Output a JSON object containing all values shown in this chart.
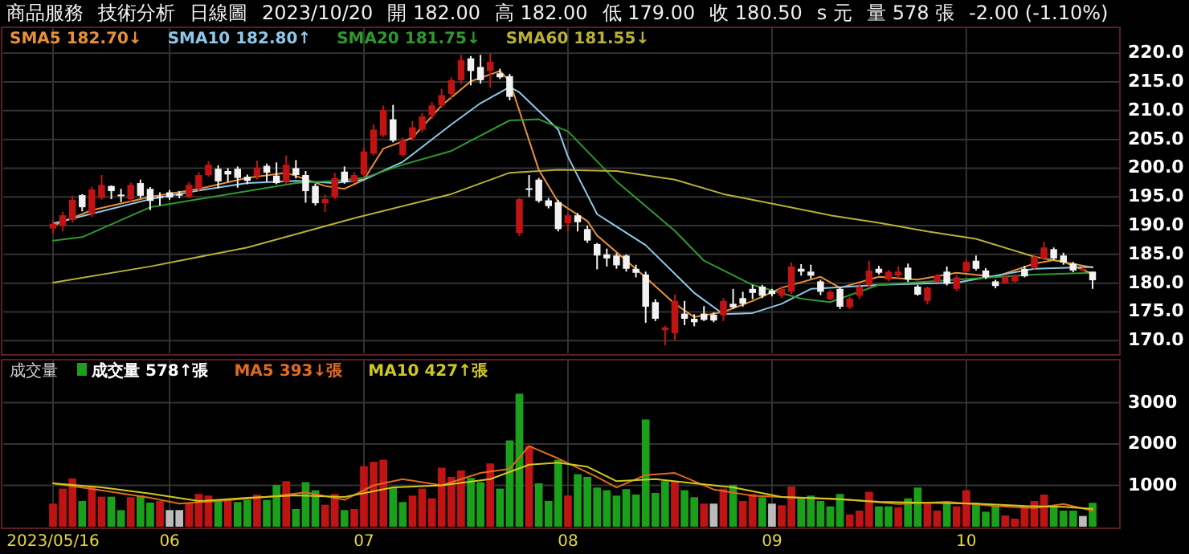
{
  "chart_data": [
    {
      "type": "candlestick",
      "annotations": [
        "商品服務",
        "技術分析",
        "日線圖",
        "2023/10/20",
        "開 182.00",
        "高 182.00",
        "低 179.00",
        "收 180.50",
        "s 元",
        "量 578 張",
        "-2.00 (-1.10%)"
      ],
      "categories": [
        "2023/05/16",
        null,
        null,
        null,
        null,
        null,
        null,
        null,
        null,
        null,
        null,
        null,
        "06",
        null,
        null,
        null,
        null,
        null,
        null,
        null,
        null,
        null,
        null,
        null,
        null,
        null,
        null,
        null,
        null,
        null,
        null,
        null,
        "07",
        null,
        null,
        null,
        null,
        null,
        null,
        null,
        null,
        null,
        null,
        null,
        null,
        null,
        null,
        null,
        null,
        null,
        null,
        null,
        null,
        "08",
        null,
        null,
        null,
        null,
        null,
        null,
        null,
        null,
        null,
        null,
        null,
        null,
        null,
        null,
        null,
        null,
        null,
        null,
        null,
        null,
        "09",
        null,
        null,
        null,
        null,
        null,
        null,
        null,
        null,
        null,
        null,
        null,
        null,
        null,
        null,
        null,
        null,
        null,
        null,
        null,
        "10",
        null,
        null,
        null,
        null,
        null,
        null,
        null,
        null,
        null,
        null,
        null,
        null,
        null
      ],
      "ohlc": [
        [
          189.5,
          191.0,
          188.7,
          190.3
        ],
        [
          190.0,
          192.4,
          189.0,
          191.8
        ],
        [
          191.0,
          195.2,
          190.5,
          194.5
        ],
        [
          195.3,
          195.5,
          192.5,
          193.2
        ],
        [
          192.0,
          196.8,
          191.5,
          196.3
        ],
        [
          194.8,
          198.8,
          194.5,
          197.1
        ],
        [
          196.9,
          197.0,
          194.6,
          196.0
        ],
        [
          195.4,
          196.4,
          194.1,
          195.2
        ],
        [
          194.6,
          197.5,
          194.0,
          197.1
        ],
        [
          197.4,
          198.0,
          194.8,
          195.2
        ],
        [
          196.4,
          196.7,
          192.7,
          194.3
        ],
        [
          195.1,
          195.8,
          193.5,
          195.0
        ],
        [
          195.8,
          196.2,
          194.5,
          194.9
        ],
        [
          195.5,
          196.0,
          194.8,
          195.3
        ],
        [
          195.0,
          197.6,
          194.8,
          197.1
        ],
        [
          196.4,
          199.3,
          196.0,
          198.8
        ],
        [
          198.8,
          201.2,
          198.5,
          200.6
        ],
        [
          199.9,
          200.5,
          196.5,
          197.7
        ],
        [
          199.5,
          200.0,
          197.6,
          198.9
        ],
        [
          199.9,
          200.3,
          196.6,
          198.3
        ],
        [
          198.5,
          198.9,
          197.2,
          197.8
        ],
        [
          198.6,
          201.3,
          198.0,
          200.1
        ],
        [
          200.4,
          200.8,
          197.7,
          199.2
        ],
        [
          198.7,
          201.0,
          197.2,
          197.4
        ],
        [
          197.6,
          202.2,
          197.2,
          200.6
        ],
        [
          200.0,
          201.4,
          198.2,
          198.8
        ],
        [
          198.8,
          199.5,
          194.0,
          196.0
        ],
        [
          196.9,
          197.3,
          193.5,
          193.9
        ],
        [
          193.9,
          195.4,
          192.4,
          194.6
        ],
        [
          195.0,
          199.2,
          194.6,
          198.3
        ],
        [
          199.4,
          200.3,
          197.3,
          197.6
        ],
        [
          197.7,
          199.3,
          197.4,
          198.8
        ],
        [
          198.9,
          203.5,
          198.5,
          202.9
        ],
        [
          202.5,
          207.6,
          202.2,
          206.7
        ],
        [
          205.7,
          210.9,
          205.4,
          210.1
        ],
        [
          208.5,
          211.0,
          204.5,
          204.8
        ],
        [
          202.3,
          205.3,
          202.0,
          204.8
        ],
        [
          205.3,
          208.2,
          204.7,
          207.1
        ],
        [
          206.7,
          209.6,
          206.2,
          209.0
        ],
        [
          209.2,
          211.5,
          208.6,
          210.9
        ],
        [
          210.9,
          213.8,
          210.5,
          212.7
        ],
        [
          212.9,
          215.8,
          212.2,
          215.3
        ],
        [
          215.3,
          219.7,
          214.6,
          218.8
        ],
        [
          219.1,
          219.5,
          214.4,
          216.9
        ],
        [
          217.6,
          219.7,
          214.7,
          215.3
        ],
        [
          216.9,
          220.0,
          214.0,
          218.5
        ],
        [
          216.5,
          217.3,
          215.5,
          215.8
        ],
        [
          216.0,
          216.4,
          211.8,
          212.4
        ],
        [
          188.7,
          194.8,
          188.2,
          194.6
        ],
        [
          196.5,
          198.8,
          195.0,
          196.4
        ],
        [
          198.0,
          198.3,
          194.0,
          194.3
        ],
        [
          194.4,
          194.8,
          193.0,
          193.4
        ],
        [
          194.1,
          194.5,
          189.0,
          189.4
        ],
        [
          190.4,
          192.2,
          189.0,
          191.8
        ],
        [
          191.8,
          192.2,
          189.0,
          190.6
        ],
        [
          189.4,
          190.0,
          187.0,
          187.4
        ],
        [
          186.8,
          187.0,
          182.4,
          184.8
        ],
        [
          185.0,
          186.0,
          182.9,
          184.3
        ],
        [
          184.8,
          185.2,
          182.5,
          183.1
        ],
        [
          184.8,
          185.0,
          182.0,
          182.5
        ],
        [
          182.5,
          183.2,
          181.0,
          181.8
        ],
        [
          181.5,
          182.0,
          173.1,
          175.9
        ],
        [
          176.7,
          177.2,
          173.4,
          173.8
        ],
        [
          171.8,
          172.6,
          169.2,
          172.3
        ],
        [
          171.3,
          178.0,
          170.0,
          176.9
        ],
        [
          174.7,
          176.9,
          172.7,
          173.8
        ],
        [
          173.8,
          174.6,
          172.5,
          173.2
        ],
        [
          174.7,
          176.0,
          173.4,
          173.6
        ],
        [
          174.5,
          174.9,
          173.2,
          173.5
        ],
        [
          174.4,
          177.4,
          173.4,
          176.9
        ],
        [
          176.4,
          179.0,
          175.5,
          175.8
        ],
        [
          177.4,
          178.5,
          175.9,
          176.4
        ],
        [
          179.0,
          179.7,
          177.2,
          178.3
        ],
        [
          179.4,
          179.7,
          177.4,
          177.8
        ],
        [
          178.7,
          179.0,
          177.7,
          178.1
        ],
        [
          177.8,
          179.5,
          177.4,
          179.0
        ],
        [
          178.5,
          183.6,
          178.1,
          182.9
        ],
        [
          182.5,
          183.3,
          181.3,
          182.0
        ],
        [
          182.0,
          183.2,
          180.8,
          181.3
        ],
        [
          180.3,
          180.6,
          177.9,
          178.5
        ],
        [
          177.2,
          178.8,
          177.0,
          178.5
        ],
        [
          179.0,
          179.3,
          175.5,
          175.9
        ],
        [
          175.8,
          177.6,
          175.5,
          177.3
        ],
        [
          177.8,
          179.9,
          177.2,
          179.4
        ],
        [
          179.7,
          183.9,
          179.3,
          182.2
        ],
        [
          182.5,
          183.0,
          181.5,
          181.8
        ],
        [
          180.6,
          182.3,
          180.3,
          182.0
        ],
        [
          181.3,
          182.9,
          180.9,
          182.0
        ],
        [
          182.7,
          183.4,
          180.2,
          180.6
        ],
        [
          179.4,
          179.7,
          177.8,
          178.0
        ],
        [
          176.9,
          179.4,
          176.3,
          179.2
        ],
        [
          180.3,
          181.6,
          180.1,
          181.3
        ],
        [
          182.0,
          182.9,
          179.6,
          179.9
        ],
        [
          179.0,
          181.4,
          178.6,
          181.0
        ],
        [
          182.0,
          184.1,
          181.8,
          183.7
        ],
        [
          183.9,
          184.8,
          182.2,
          182.5
        ],
        [
          182.2,
          182.6,
          180.7,
          181.0
        ],
        [
          180.3,
          180.6,
          179.1,
          179.5
        ],
        [
          180.0,
          181.4,
          179.8,
          181.1
        ],
        [
          180.3,
          181.6,
          180.1,
          181.3
        ],
        [
          182.5,
          183.0,
          181.0,
          181.2
        ],
        [
          182.7,
          185.0,
          182.4,
          184.6
        ],
        [
          184.3,
          187.2,
          184.0,
          186.2
        ],
        [
          185.9,
          186.2,
          184.0,
          184.3
        ],
        [
          184.8,
          185.3,
          183.2,
          183.6
        ],
        [
          183.4,
          183.7,
          181.9,
          182.2
        ],
        [
          182.2,
          182.8,
          182.0,
          182.5
        ],
        [
          182.0,
          182.0,
          179.0,
          180.5
        ]
      ],
      "series": [
        {
          "type": "line",
          "name": "SMA5 182.70↓",
          "color": "#e8903a",
          "values": [
            190.0,
            null,
            null,
            null,
            192.7,
            null,
            null,
            null,
            null,
            null,
            195.0,
            null,
            null,
            null,
            null,
            196.4,
            null,
            null,
            null,
            null,
            198.3,
            null,
            null,
            null,
            199.2,
            null,
            null,
            null,
            196.9,
            null,
            196.4,
            null,
            198.0,
            null,
            203.4,
            null,
            null,
            205.3,
            null,
            null,
            210.9,
            null,
            null,
            215.1,
            null,
            null,
            216.9,
            215.1,
            null,
            null,
            199.7,
            null,
            194.1,
            null,
            null,
            190.8,
            188.3,
            null,
            null,
            null,
            null,
            181.0,
            null,
            null,
            176.4,
            null,
            174.1,
            null,
            null,
            175.0,
            null,
            null,
            176.9,
            null,
            null,
            179.2,
            null,
            null,
            null,
            181.1,
            null,
            179.2,
            null,
            null,
            null,
            181.1,
            null,
            null,
            null,
            180.6,
            null,
            null,
            null,
            181.8,
            null,
            null,
            null,
            181.1,
            null,
            null,
            null,
            183.4,
            null,
            184.0,
            null,
            null,
            null,
            182.7
          ]
        },
        {
          "type": "line",
          "name": "SMA10 182.80↑",
          "color": "#8ec8e8",
          "values": [
            190.4,
            null,
            null,
            null,
            null,
            null,
            null,
            null,
            null,
            null,
            194.6,
            null,
            null,
            null,
            null,
            196.1,
            null,
            null,
            null,
            null,
            197.4,
            null,
            null,
            null,
            null,
            197.8,
            null,
            null,
            null,
            197.4,
            null,
            null,
            198.0,
            null,
            null,
            null,
            201.1,
            null,
            null,
            null,
            null,
            207.6,
            null,
            null,
            211.3,
            null,
            null,
            214.1,
            213.2,
            null,
            null,
            null,
            206.7,
            202.0,
            null,
            null,
            192.0,
            null,
            null,
            null,
            null,
            186.6,
            null,
            null,
            null,
            null,
            178.3,
            null,
            null,
            174.6,
            null,
            null,
            174.8,
            null,
            null,
            176.4,
            null,
            null,
            179.0,
            null,
            null,
            null,
            null,
            null,
            null,
            179.7,
            null,
            null,
            null,
            null,
            null,
            null,
            null,
            180.1,
            null,
            null,
            null,
            null,
            null,
            null,
            null,
            182.5,
            null,
            null,
            null,
            null,
            null,
            182.8
          ]
        },
        {
          "type": "line",
          "name": "SMA20 181.75↓",
          "color": "#2e9a2e",
          "values": [
            187.4,
            null,
            null,
            188.0,
            null,
            null,
            null,
            null,
            null,
            null,
            193.2,
            null,
            null,
            null,
            null,
            194.6,
            null,
            null,
            null,
            null,
            196.0,
            null,
            null,
            null,
            null,
            197.4,
            null,
            null,
            null,
            197.8,
            null,
            null,
            198.3,
            null,
            null,
            null,
            200.6,
            null,
            null,
            null,
            null,
            203.0,
            null,
            null,
            null,
            null,
            null,
            208.3,
            null,
            null,
            208.5,
            null,
            null,
            206.4,
            null,
            null,
            null,
            null,
            197.7,
            null,
            null,
            null,
            null,
            null,
            189.1,
            null,
            null,
            183.9,
            null,
            null,
            null,
            null,
            179.7,
            null,
            null,
            null,
            null,
            177.3,
            null,
            null,
            176.7,
            null,
            null,
            null,
            null,
            179.7,
            null,
            null,
            null,
            null,
            null,
            null,
            null,
            180.6,
            null,
            null,
            null,
            null,
            null,
            null,
            null,
            181.5,
            null,
            null,
            null,
            null,
            null,
            181.8
          ]
        },
        {
          "type": "line",
          "name": "SMA60 181.55↓",
          "color": "#b8b038",
          "values": [
            180.1,
            null,
            null,
            null,
            null,
            null,
            null,
            null,
            null,
            null,
            182.9,
            null,
            null,
            null,
            null,
            null,
            null,
            null,
            null,
            null,
            186.2,
            null,
            null,
            null,
            null,
            null,
            null,
            null,
            null,
            null,
            null,
            191.3,
            null,
            null,
            null,
            null,
            null,
            null,
            null,
            null,
            null,
            195.5,
            null,
            null,
            null,
            null,
            null,
            199.2,
            null,
            null,
            null,
            null,
            199.7,
            null,
            null,
            null,
            null,
            null,
            199.5,
            null,
            null,
            null,
            null,
            null,
            198.0,
            null,
            null,
            null,
            null,
            195.5,
            null,
            null,
            null,
            null,
            null,
            193.5,
            null,
            null,
            null,
            null,
            191.8,
            null,
            null,
            null,
            null,
            190.5,
            null,
            null,
            null,
            null,
            189.0,
            null,
            null,
            null,
            null,
            187.7,
            null,
            null,
            null,
            null,
            null,
            184.6,
            null,
            null,
            183.7,
            null,
            null,
            181.6
          ]
        }
      ],
      "ylim": [
        167.8,
        224.5
      ],
      "yticks": [
        {
          "value": 170,
          "label": "170.0"
        },
        {
          "value": 175,
          "label": "175.0"
        },
        {
          "value": 180,
          "label": "180.0"
        },
        {
          "value": 185,
          "label": "185.0"
        },
        {
          "value": 190,
          "label": "190.0"
        },
        {
          "value": 195,
          "label": "195.0"
        },
        {
          "value": 200,
          "label": "200.0"
        },
        {
          "value": 205,
          "label": "205.0"
        },
        {
          "value": 210,
          "label": "210.0"
        },
        {
          "value": 215,
          "label": "215.0"
        },
        {
          "value": 220,
          "label": "220.0"
        }
      ],
      "grid": true,
      "legend": "top left",
      "tick_labels": "y"
    },
    {
      "type": "bar",
      "title": "成交量",
      "categories": [
        "2023/05/16",
        null,
        null,
        null,
        null,
        null,
        null,
        null,
        null,
        null,
        null,
        null,
        "06",
        null,
        null,
        null,
        null,
        null,
        null,
        null,
        null,
        null,
        null,
        null,
        null,
        null,
        null,
        null,
        null,
        null,
        null,
        null,
        "07",
        null,
        null,
        null,
        null,
        null,
        null,
        null,
        null,
        null,
        null,
        null,
        null,
        null,
        null,
        null,
        null,
        null,
        null,
        null,
        null,
        "08",
        null,
        null,
        null,
        null,
        null,
        null,
        null,
        null,
        null,
        null,
        null,
        null,
        null,
        null,
        null,
        null,
        null,
        null,
        null,
        null,
        "09",
        null,
        null,
        null,
        null,
        null,
        null,
        null,
        null,
        null,
        null,
        null,
        null,
        null,
        null,
        null,
        null,
        null,
        null,
        null,
        "10",
        null,
        null,
        null,
        null,
        null,
        null,
        null,
        null,
        null,
        null,
        null,
        null,
        null
      ],
      "series": [
        {
          "type": "bar",
          "name": "成交量 578↑張",
          "values": [
            558,
            921,
            1167,
            623,
            986,
            726,
            726,
            402,
            713,
            752,
            584,
            623,
            402,
            402,
            584,
            791,
            752,
            623,
            661,
            597,
            649,
            778,
            649,
            1012,
            1102,
            428,
            1077,
            882,
            532,
            791,
            402,
            428,
            1466,
            1569,
            1621,
            947,
            597,
            752,
            921,
            687,
            1427,
            1206,
            1362,
            1180,
            1077,
            1530,
            921,
            2088,
            3217,
            1958,
            1051,
            623,
            1621,
            752,
            1271,
            1206,
            947,
            882,
            752,
            908,
            778,
            2594,
            817,
            1102,
            1102,
            882,
            713,
            558,
            558,
            921,
            1012,
            623,
            791,
            713,
            558,
            519,
            973,
            713,
            752,
            623,
            493,
            791,
            298,
            389,
            843,
            493,
            493,
            467,
            687,
            947,
            558,
            389,
            558,
            493,
            882,
            584,
            363,
            493,
            272,
            195,
            519,
            623,
            778,
            467,
            389,
            389,
            259,
            578
          ],
          "colors": [
            "#c01414",
            "#c01414",
            "#c01414",
            "#1aa01a",
            "#c01414",
            "#c01414",
            "#1aa01a",
            "#1aa01a",
            "#c01414",
            "#1aa01a",
            "#1aa01a",
            "#c01414",
            "#bbbbbb",
            "#bbbbbb",
            "#c01414",
            "#c01414",
            "#c01414",
            "#1aa01a",
            "#c01414",
            "#1aa01a",
            "#1aa01a",
            "#c01414",
            "#1aa01a",
            "#1aa01a",
            "#c01414",
            "#1aa01a",
            "#1aa01a",
            "#1aa01a",
            "#c01414",
            "#c01414",
            "#1aa01a",
            "#c01414",
            "#c01414",
            "#c01414",
            "#c01414",
            "#1aa01a",
            "#1aa01a",
            "#c01414",
            "#c01414",
            "#c01414",
            "#c01414",
            "#c01414",
            "#c01414",
            "#1aa01a",
            "#1aa01a",
            "#c01414",
            "#1aa01a",
            "#1aa01a",
            "#1aa01a",
            "#c01414",
            "#1aa01a",
            "#1aa01a",
            "#1aa01a",
            "#c01414",
            "#1aa01a",
            "#1aa01a",
            "#1aa01a",
            "#1aa01a",
            "#1aa01a",
            "#1aa01a",
            "#1aa01a",
            "#1aa01a",
            "#1aa01a",
            "#1aa01a",
            "#c01414",
            "#1aa01a",
            "#1aa01a",
            "#c01414",
            "#bbbbbb",
            "#c01414",
            "#1aa01a",
            "#c01414",
            "#c01414",
            "#1aa01a",
            "#bbbbbb",
            "#c01414",
            "#c01414",
            "#1aa01a",
            "#1aa01a",
            "#1aa01a",
            "#1aa01a",
            "#1aa01a",
            "#c01414",
            "#c01414",
            "#c01414",
            "#1aa01a",
            "#1aa01a",
            "#c01414",
            "#1aa01a",
            "#1aa01a",
            "#c01414",
            "#c01414",
            "#1aa01a",
            "#c01414",
            "#c01414",
            "#1aa01a",
            "#1aa01a",
            "#1aa01a",
            "#c01414",
            "#c01414",
            "#c01414",
            "#c01414",
            "#c01414",
            "#1aa01a",
            "#1aa01a",
            "#1aa01a",
            "#bbbbbb",
            "#1aa01a"
          ]
        },
        {
          "type": "line",
          "name": "MA5 393↓張",
          "color": "#e06a20",
          "values": [
            1050,
            null,
            null,
            null,
            null,
            880,
            null,
            null,
            null,
            null,
            700,
            null,
            null,
            560,
            null,
            null,
            null,
            620,
            null,
            null,
            null,
            null,
            720,
            null,
            null,
            null,
            830,
            null,
            null,
            null,
            650,
            null,
            null,
            1000,
            null,
            null,
            1150,
            null,
            null,
            null,
            1000,
            null,
            null,
            null,
            1300,
            null,
            null,
            1400,
            null,
            1950,
            null,
            null,
            1650,
            null,
            null,
            null,
            1200,
            null,
            950,
            null,
            null,
            1250,
            null,
            null,
            1300,
            null,
            null,
            null,
            900,
            null,
            null,
            null,
            750,
            null,
            null,
            null,
            null,
            700,
            null,
            null,
            null,
            null,
            650,
            null,
            null,
            null,
            null,
            550,
            null,
            null,
            null,
            null,
            600,
            null,
            null,
            null,
            null,
            500,
            null,
            null,
            null,
            450,
            null,
            null,
            550,
            null,
            null,
            390
          ]
        },
        {
          "type": "line",
          "name": "MA10 427↑張",
          "color": "#d0c820",
          "values": [
            1050,
            null,
            null,
            null,
            null,
            950,
            null,
            null,
            null,
            null,
            800,
            null,
            null,
            null,
            null,
            620,
            null,
            null,
            null,
            null,
            700,
            null,
            null,
            null,
            null,
            760,
            null,
            null,
            null,
            null,
            720,
            null,
            null,
            null,
            null,
            950,
            null,
            null,
            null,
            null,
            1000,
            null,
            null,
            null,
            null,
            1150,
            null,
            null,
            null,
            1500,
            null,
            null,
            1550,
            null,
            null,
            1450,
            null,
            null,
            1100,
            null,
            null,
            null,
            1150,
            null,
            null,
            null,
            1050,
            null,
            null,
            null,
            950,
            null,
            null,
            null,
            null,
            720,
            null,
            null,
            null,
            null,
            680,
            null,
            null,
            null,
            null,
            600,
            null,
            null,
            null,
            null,
            580,
            null,
            null,
            null,
            null,
            560,
            null,
            null,
            null,
            null,
            500,
            null,
            null,
            null,
            480,
            null,
            null,
            430
          ]
        }
      ],
      "ylim": [
        0,
        4040
      ],
      "yticks": [
        1000,
        2000,
        3000
      ],
      "grid": true,
      "legend": "top left"
    }
  ]
}
